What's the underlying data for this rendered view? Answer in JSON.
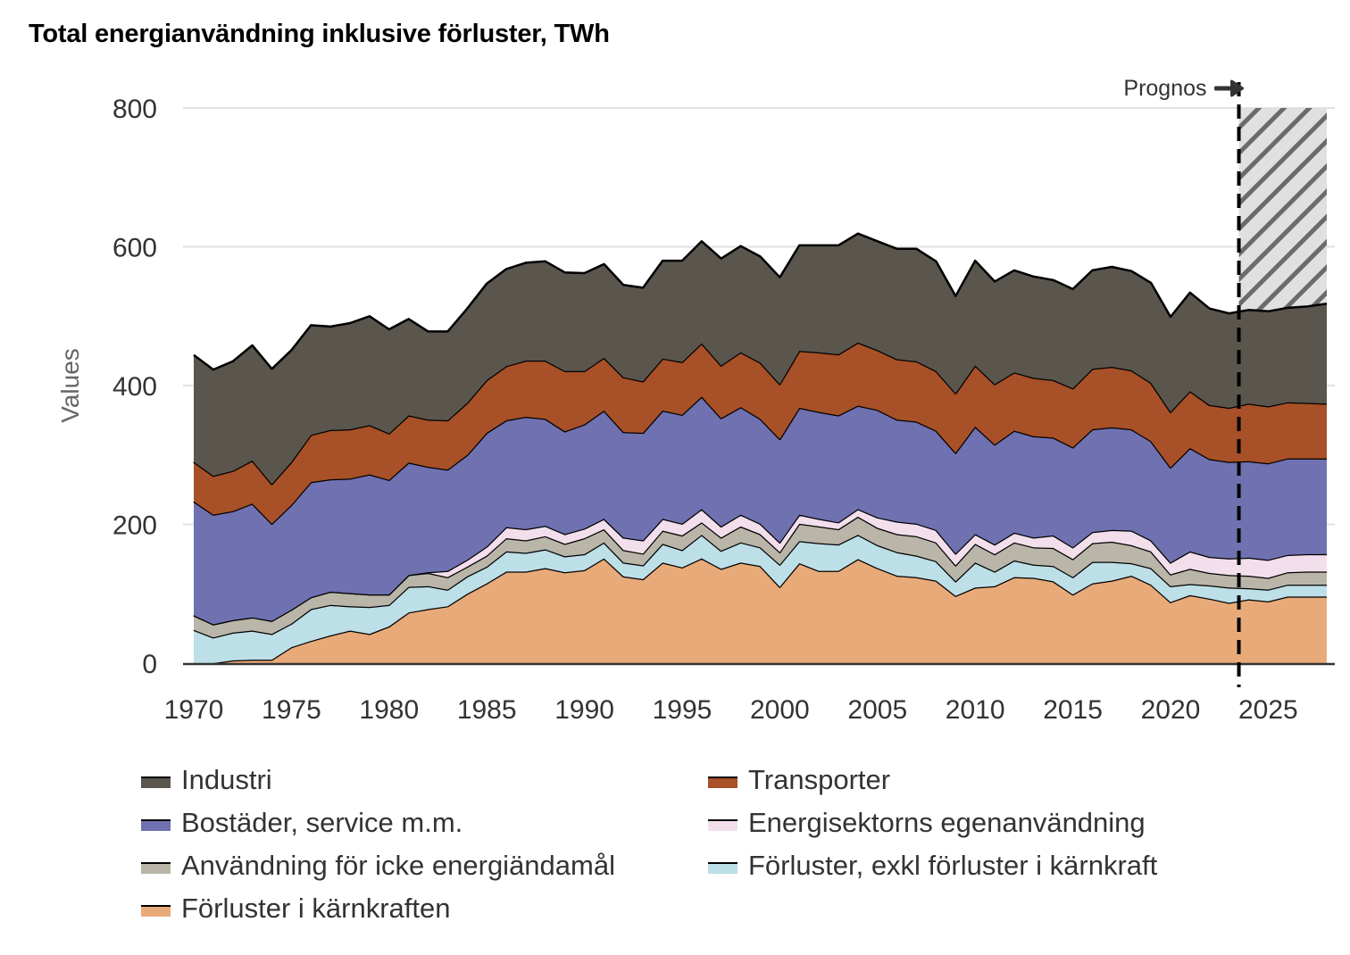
{
  "title": "Total energianvändning inklusive förluster, TWh",
  "prognos_label": "Prognos",
  "prognos_icon": "arrow-right-icon",
  "chart_data": {
    "type": "area",
    "stacked": true,
    "title": "Total energianvändning inklusive förluster, TWh",
    "xlabel": "",
    "ylabel": "Values",
    "ylim": [
      0,
      800
    ],
    "xlim": [
      1970,
      2028
    ],
    "yticks": [
      0,
      200,
      400,
      600,
      800
    ],
    "xticks": [
      1970,
      1975,
      1980,
      1985,
      1990,
      1995,
      2000,
      2005,
      2010,
      2015,
      2020,
      2025
    ],
    "grid": "horizontal",
    "legend_position": "bottom",
    "forecast_start": 2023.5,
    "forecast_label": "Prognos",
    "x": [
      1970,
      1971,
      1972,
      1973,
      1974,
      1975,
      1976,
      1977,
      1978,
      1979,
      1980,
      1981,
      1982,
      1983,
      1984,
      1985,
      1986,
      1987,
      1988,
      1989,
      1990,
      1991,
      1992,
      1993,
      1994,
      1995,
      1996,
      1997,
      1998,
      1999,
      2000,
      2001,
      2002,
      2003,
      2004,
      2005,
      2006,
      2007,
      2008,
      2009,
      2010,
      2011,
      2012,
      2013,
      2014,
      2015,
      2016,
      2017,
      2018,
      2019,
      2020,
      2021,
      2022,
      2023,
      2024,
      2025,
      2026,
      2027,
      2028
    ],
    "series": [
      {
        "name": "Förluster i kärnkraften",
        "color": "#E9AA7A",
        "values": [
          0,
          0,
          4,
          5,
          5,
          23,
          32,
          40,
          47,
          42,
          53,
          73,
          78,
          82,
          100,
          115,
          132,
          132,
          137,
          131,
          134,
          151,
          125,
          121,
          145,
          138,
          151,
          136,
          145,
          140,
          110,
          144,
          133,
          133,
          150,
          137,
          126,
          124,
          119,
          97,
          109,
          111,
          124,
          123,
          118,
          99,
          115,
          119,
          126,
          113,
          88,
          98,
          93,
          87,
          92,
          89,
          96,
          96,
          96
        ]
      },
      {
        "name": "Förluster, exkl förluster i kärnkraft",
        "color": "#BDDFE8",
        "values": [
          48,
          37,
          40,
          42,
          37,
          34,
          46,
          44,
          35,
          39,
          31,
          37,
          33,
          24,
          25,
          24,
          29,
          27,
          27,
          23,
          23,
          23,
          20,
          20,
          27,
          25,
          34,
          26,
          29,
          27,
          32,
          32,
          40,
          38,
          35,
          33,
          34,
          31,
          28,
          21,
          36,
          21,
          24,
          19,
          22,
          25,
          31,
          27,
          18,
          24,
          23,
          16,
          19,
          22,
          16,
          17,
          17,
          17,
          17
        ]
      },
      {
        "name": "Användning för icke energiändamål",
        "color": "#B9B5A8",
        "values": [
          21,
          19,
          18,
          19,
          19,
          20,
          17,
          19,
          19,
          18,
          15,
          17,
          19,
          18,
          14,
          16,
          19,
          18,
          19,
          18,
          23,
          19,
          18,
          17,
          19,
          21,
          18,
          19,
          23,
          19,
          18,
          25,
          24,
          22,
          26,
          25,
          26,
          28,
          27,
          23,
          27,
          25,
          26,
          25,
          26,
          26,
          27,
          29,
          26,
          24,
          17,
          22,
          18,
          18,
          18,
          17,
          18,
          19,
          19
        ]
      },
      {
        "name": "Energisektorns egenanvändning",
        "color": "#F3DFEC",
        "values": [
          0,
          0,
          0,
          0,
          0,
          0,
          0,
          0,
          0,
          0,
          0,
          0,
          1,
          9,
          10,
          13,
          16,
          16,
          15,
          14,
          14,
          15,
          18,
          19,
          17,
          17,
          19,
          16,
          17,
          15,
          14,
          13,
          11,
          10,
          11,
          15,
          18,
          18,
          18,
          17,
          14,
          14,
          14,
          14,
          18,
          17,
          16,
          17,
          21,
          16,
          17,
          25,
          23,
          24,
          26,
          26,
          25,
          25,
          25
        ]
      },
      {
        "name": "Bostäder, service m.m.",
        "color": "#6F71B0",
        "values": [
          164,
          158,
          157,
          164,
          140,
          151,
          166,
          162,
          165,
          173,
          165,
          162,
          152,
          146,
          151,
          164,
          154,
          162,
          154,
          148,
          150,
          156,
          152,
          155,
          156,
          157,
          162,
          156,
          155,
          151,
          149,
          154,
          154,
          154,
          149,
          155,
          147,
          147,
          143,
          145,
          155,
          144,
          147,
          146,
          141,
          144,
          148,
          148,
          146,
          143,
          137,
          149,
          141,
          139,
          139,
          139,
          139,
          138,
          138
        ]
      },
      {
        "name": "Transporter",
        "color": "#A85027",
        "values": [
          57,
          56,
          58,
          62,
          57,
          62,
          68,
          71,
          71,
          71,
          67,
          68,
          68,
          71,
          75,
          76,
          78,
          81,
          84,
          87,
          77,
          76,
          79,
          74,
          75,
          76,
          77,
          76,
          79,
          81,
          79,
          82,
          86,
          88,
          91,
          86,
          87,
          87,
          86,
          86,
          88,
          87,
          84,
          84,
          83,
          85,
          87,
          87,
          85,
          84,
          80,
          82,
          78,
          78,
          83,
          82,
          81,
          80,
          79
        ]
      },
      {
        "name": "Industri",
        "color": "#5A564E",
        "values": [
          154,
          153,
          158,
          166,
          166,
          161,
          158,
          149,
          153,
          157,
          150,
          139,
          127,
          128,
          136,
          139,
          140,
          141,
          143,
          142,
          141,
          135,
          133,
          135,
          141,
          146,
          147,
          154,
          153,
          153,
          154,
          152,
          154,
          157,
          157,
          157,
          159,
          162,
          158,
          140,
          151,
          148,
          147,
          146,
          144,
          143,
          142,
          144,
          143,
          144,
          137,
          142,
          139,
          136,
          135,
          137,
          136,
          139,
          144
        ]
      }
    ],
    "legend": [
      {
        "label": "Industri",
        "color": "#5A564E"
      },
      {
        "label": "Transporter",
        "color": "#A85027"
      },
      {
        "label": "Bostäder, service m.m.",
        "color": "#6F71B0"
      },
      {
        "label": "Energisektorns egenanvändning",
        "color": "#F3DFEC"
      },
      {
        "label": "Användning för icke energiändamål",
        "color": "#B9B5A8"
      },
      {
        "label": "Förluster, exkl förluster i kärnkraft",
        "color": "#BDDFE8"
      },
      {
        "label": "Förluster i kärnkraften",
        "color": "#E9AA7A"
      }
    ]
  }
}
